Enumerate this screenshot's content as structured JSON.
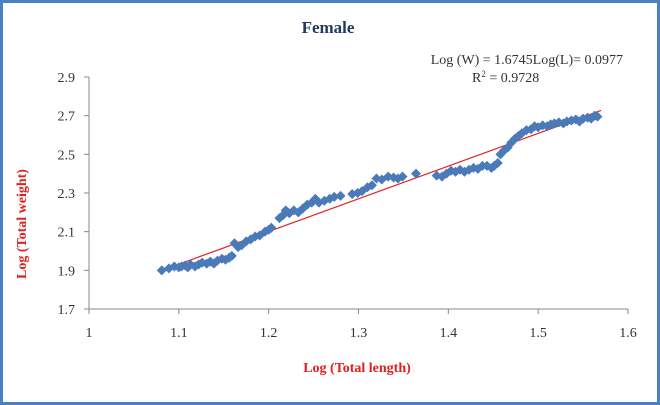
{
  "chart_data": {
    "type": "scatter",
    "title": "Female",
    "xlabel": "Log (Total length)",
    "ylabel": "Log (Total weight)",
    "xlim": [
      1,
      1.6
    ],
    "ylim": [
      1.7,
      2.9
    ],
    "x_ticks": [
      "1",
      "1.1",
      "1.2",
      "1.3",
      "1.4",
      "1.5",
      "1.6"
    ],
    "y_ticks": [
      "1.7",
      "1.9",
      "2.1",
      "2.3",
      "2.5",
      "2.7",
      "2.9"
    ],
    "equation": "Log (W) = 1.6745Log(L)= 0.0977",
    "r2_label": "R",
    "r2_sup": "2",
    "r2_value": " = 0.9728",
    "grid": false,
    "marker_color": "#4a7ab8",
    "trendline_color": "#e02020",
    "trendline": {
      "slope": 1.6745,
      "intercept": 0.0977,
      "x_range": [
        1.08,
        1.57
      ]
    },
    "series": [
      {
        "points": [
          [
            1.081,
            1.9
          ],
          [
            1.089,
            1.91
          ],
          [
            1.095,
            1.92
          ],
          [
            1.1,
            1.915
          ],
          [
            1.103,
            1.92
          ],
          [
            1.107,
            1.925
          ],
          [
            1.11,
            1.915
          ],
          [
            1.113,
            1.93
          ],
          [
            1.118,
            1.92
          ],
          [
            1.122,
            1.93
          ],
          [
            1.126,
            1.94
          ],
          [
            1.131,
            1.935
          ],
          [
            1.135,
            1.945
          ],
          [
            1.139,
            1.935
          ],
          [
            1.143,
            1.95
          ],
          [
            1.148,
            1.96
          ],
          [
            1.152,
            1.955
          ],
          [
            1.156,
            1.965
          ],
          [
            1.159,
            1.975
          ],
          [
            1.162,
            2.04
          ],
          [
            1.166,
            2.02
          ],
          [
            1.17,
            2.03
          ],
          [
            1.175,
            2.05
          ],
          [
            1.18,
            2.06
          ],
          [
            1.185,
            2.075
          ],
          [
            1.19,
            2.08
          ],
          [
            1.196,
            2.1
          ],
          [
            1.2,
            2.11
          ],
          [
            1.203,
            2.12
          ],
          [
            1.212,
            2.17
          ],
          [
            1.216,
            2.185
          ],
          [
            1.219,
            2.21
          ],
          [
            1.223,
            2.195
          ],
          [
            1.228,
            2.21
          ],
          [
            1.233,
            2.2
          ],
          [
            1.238,
            2.22
          ],
          [
            1.243,
            2.24
          ],
          [
            1.248,
            2.25
          ],
          [
            1.252,
            2.27
          ],
          [
            1.256,
            2.25
          ],
          [
            1.262,
            2.26
          ],
          [
            1.268,
            2.27
          ],
          [
            1.273,
            2.28
          ],
          [
            1.28,
            2.285
          ],
          [
            1.293,
            2.295
          ],
          [
            1.299,
            2.3
          ],
          [
            1.304,
            2.31
          ],
          [
            1.31,
            2.33
          ],
          [
            1.315,
            2.34
          ],
          [
            1.32,
            2.375
          ],
          [
            1.326,
            2.37
          ],
          [
            1.333,
            2.385
          ],
          [
            1.339,
            2.38
          ],
          [
            1.344,
            2.375
          ],
          [
            1.349,
            2.385
          ],
          [
            1.364,
            2.4
          ],
          [
            1.387,
            2.39
          ],
          [
            1.393,
            2.385
          ],
          [
            1.398,
            2.4
          ],
          [
            1.403,
            2.415
          ],
          [
            1.408,
            2.41
          ],
          [
            1.413,
            2.42
          ],
          [
            1.418,
            2.41
          ],
          [
            1.423,
            2.42
          ],
          [
            1.428,
            2.43
          ],
          [
            1.433,
            2.425
          ],
          [
            1.438,
            2.44
          ],
          [
            1.443,
            2.44
          ],
          [
            1.448,
            2.43
          ],
          [
            1.451,
            2.44
          ],
          [
            1.455,
            2.455
          ],
          [
            1.458,
            2.5
          ],
          [
            1.462,
            2.52
          ],
          [
            1.466,
            2.535
          ],
          [
            1.47,
            2.56
          ],
          [
            1.474,
            2.58
          ],
          [
            1.478,
            2.595
          ],
          [
            1.482,
            2.61
          ],
          [
            1.487,
            2.625
          ],
          [
            1.492,
            2.63
          ],
          [
            1.496,
            2.645
          ],
          [
            1.5,
            2.64
          ],
          [
            1.505,
            2.65
          ],
          [
            1.51,
            2.645
          ],
          [
            1.514,
            2.655
          ],
          [
            1.518,
            2.66
          ],
          [
            1.523,
            2.665
          ],
          [
            1.528,
            2.66
          ],
          [
            1.532,
            2.67
          ],
          [
            1.537,
            2.675
          ],
          [
            1.542,
            2.68
          ],
          [
            1.546,
            2.67
          ],
          [
            1.55,
            2.685
          ],
          [
            1.555,
            2.69
          ],
          [
            1.559,
            2.685
          ],
          [
            1.563,
            2.7
          ],
          [
            1.566,
            2.695
          ]
        ]
      }
    ]
  }
}
